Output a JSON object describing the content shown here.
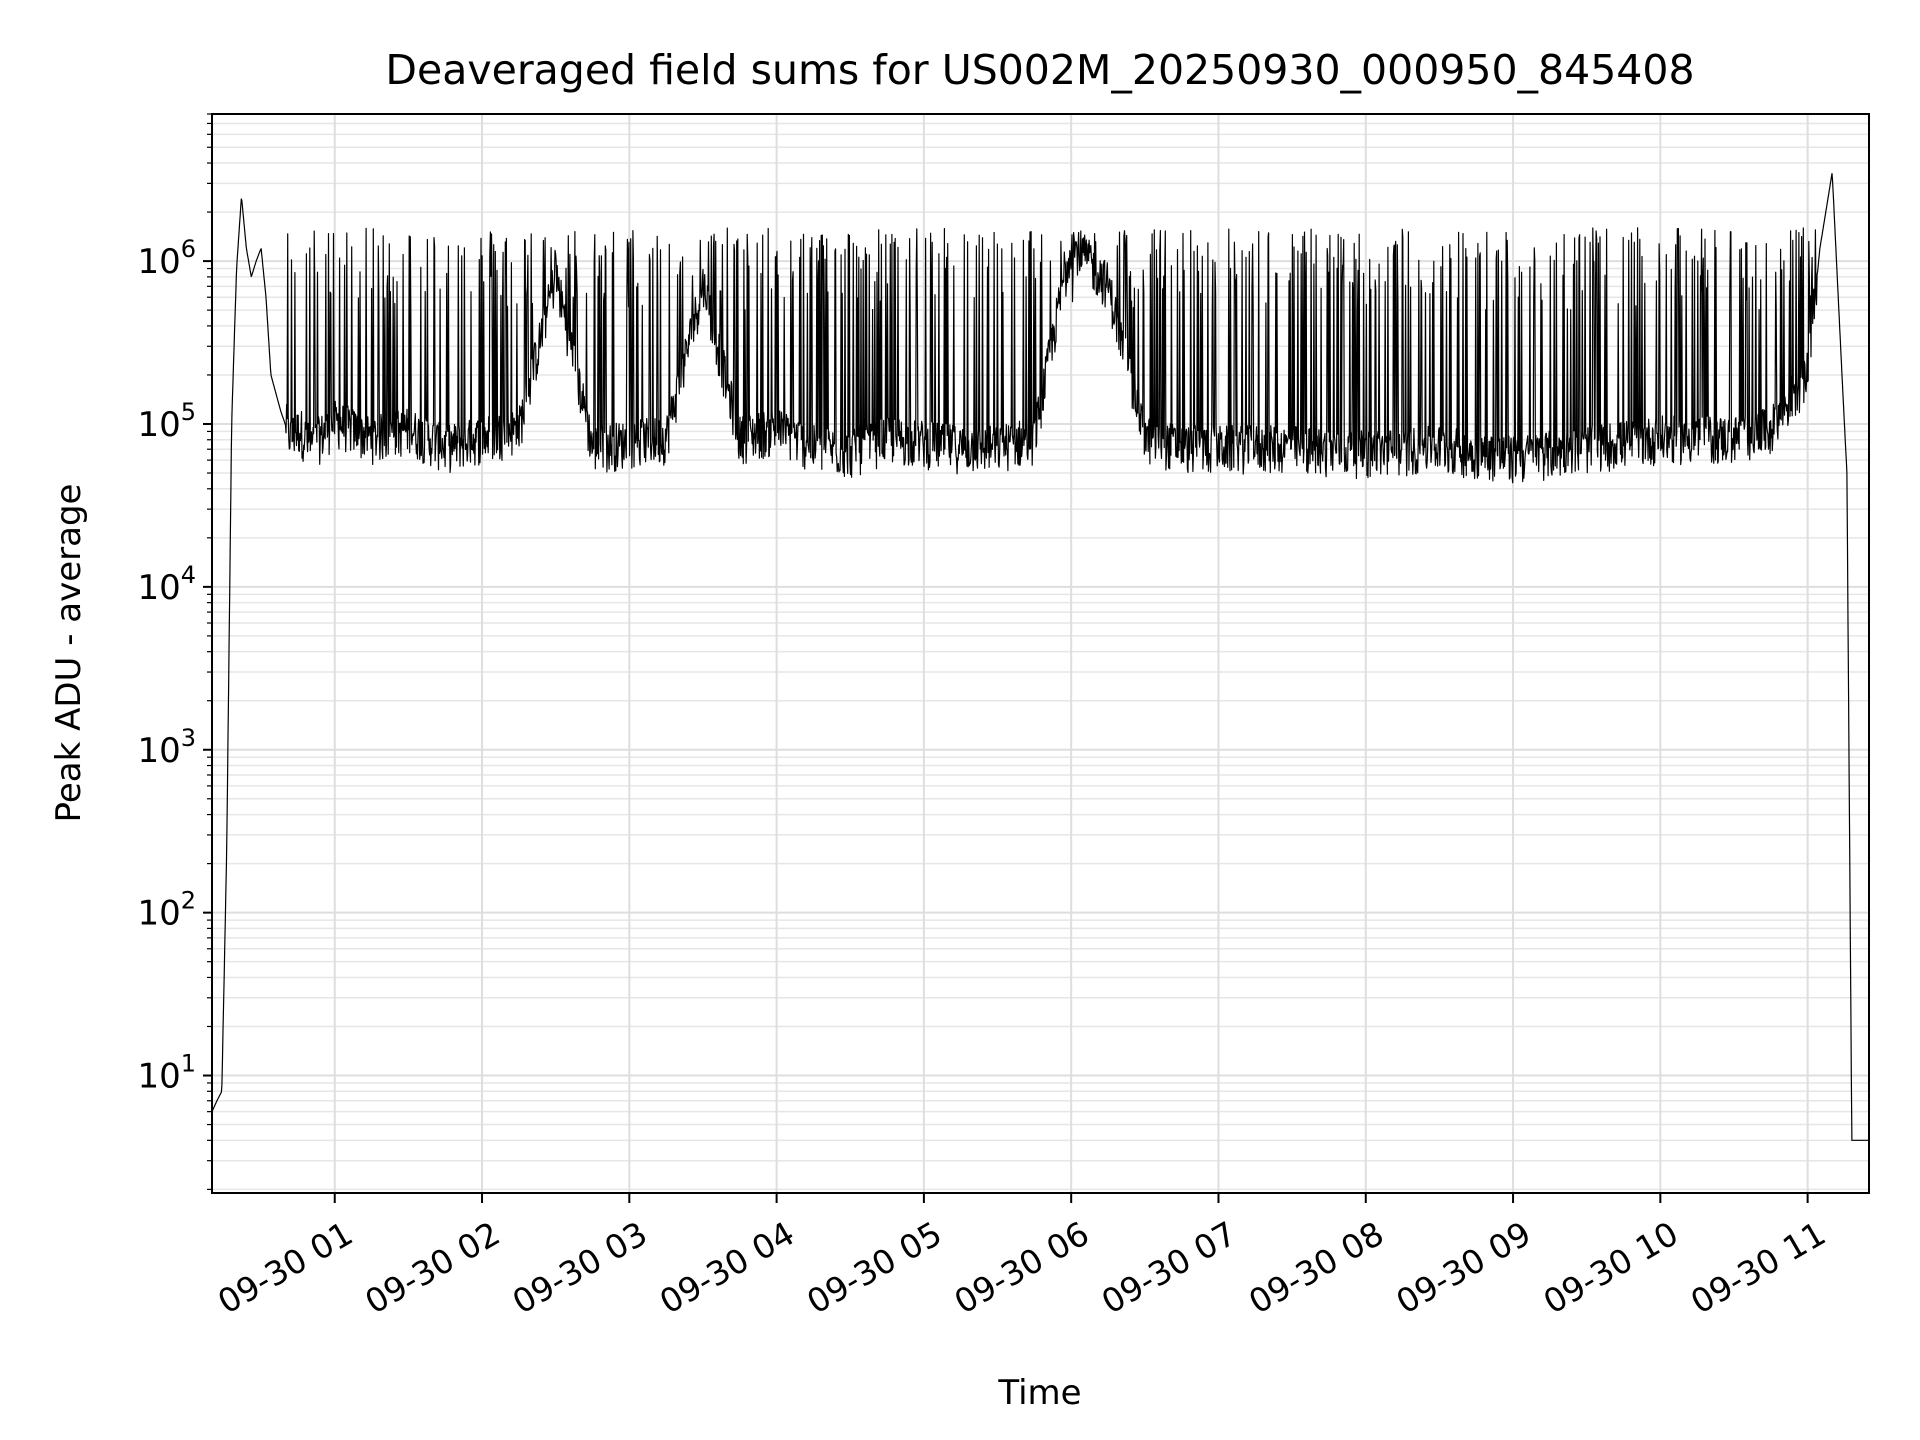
{
  "chart_data": {
    "type": "line",
    "title": "Deaveraged field sums for US002M_20250930_000950_845408",
    "xlabel": "Time",
    "ylabel": "Peak ADU - average",
    "yscale": "log",
    "ylim": [
      1.9,
      8000000
    ],
    "xlim": [
      "2025-09-30 00:10",
      "2025-09-30 11:25"
    ],
    "grid": true,
    "line_color": "#000000",
    "y_ticks": [
      {
        "value": 10,
        "base": "10",
        "exp": "1"
      },
      {
        "value": 100,
        "base": "10",
        "exp": "2"
      },
      {
        "value": 1000,
        "base": "10",
        "exp": "3"
      },
      {
        "value": 10000,
        "base": "10",
        "exp": "4"
      },
      {
        "value": 100000,
        "base": "10",
        "exp": "5"
      },
      {
        "value": 1000000,
        "base": "10",
        "exp": "6"
      }
    ],
    "x_ticks": [
      {
        "time": "2025-09-30 01:00",
        "label": "09-30 01"
      },
      {
        "time": "2025-09-30 02:00",
        "label": "09-30 02"
      },
      {
        "time": "2025-09-30 03:00",
        "label": "09-30 03"
      },
      {
        "time": "2025-09-30 04:00",
        "label": "09-30 04"
      },
      {
        "time": "2025-09-30 05:00",
        "label": "09-30 05"
      },
      {
        "time": "2025-09-30 06:00",
        "label": "09-30 06"
      },
      {
        "time": "2025-09-30 07:00",
        "label": "09-30 07"
      },
      {
        "time": "2025-09-30 08:00",
        "label": "09-30 08"
      },
      {
        "time": "2025-09-30 09:00",
        "label": "09-30 09"
      },
      {
        "time": "2025-09-30 10:00",
        "label": "09-30 10"
      },
      {
        "time": "2025-09-30 11:00",
        "label": "09-30 11"
      }
    ],
    "series": [
      {
        "x": [
          "2025-09-30 00:10",
          "2025-09-30 00:12",
          "2025-09-30 00:14",
          "2025-09-30 00:16",
          "2025-09-30 00:18",
          "2025-09-30 00:20",
          "2025-09-30 00:22",
          "2025-09-30 00:24",
          "2025-09-30 00:26",
          "2025-09-30 00:28",
          "2025-09-30 00:30",
          "2025-09-30 00:32",
          "2025-09-30 00:34",
          "2025-09-30 00:38",
          "2025-09-30 00:42",
          "2025-09-30 00:46",
          "2025-09-30 00:50",
          "2025-09-30 01:00",
          "2025-09-30 01:15",
          "2025-09-30 01:30",
          "2025-09-30 01:45",
          "2025-09-30 02:00",
          "2025-09-30 02:15",
          "2025-09-30 02:30",
          "2025-09-30 02:45",
          "2025-09-30 03:00",
          "2025-09-30 03:15",
          "2025-09-30 03:30",
          "2025-09-30 03:45",
          "2025-09-30 04:00",
          "2025-09-30 04:15",
          "2025-09-30 04:30",
          "2025-09-30 04:45",
          "2025-09-30 05:00",
          "2025-09-30 05:15",
          "2025-09-30 05:30",
          "2025-09-30 05:45",
          "2025-09-30 06:00",
          "2025-09-30 06:15",
          "2025-09-30 06:30",
          "2025-09-30 06:45",
          "2025-09-30 07:00",
          "2025-09-30 07:30",
          "2025-09-30 08:00",
          "2025-09-30 08:30",
          "2025-09-30 09:00",
          "2025-09-30 09:30",
          "2025-09-30 10:00",
          "2025-09-30 10:30",
          "2025-09-30 10:45",
          "2025-09-30 11:00",
          "2025-09-30 11:05",
          "2025-09-30 11:10",
          "2025-09-30 11:14",
          "2025-09-30 11:16",
          "2025-09-30 11:18",
          "2025-09-30 11:20",
          "2025-09-30 11:22",
          "2025-09-30 11:25"
        ],
        "y": [
          6,
          7,
          8,
          250,
          100000,
          900000,
          2500000,
          1200000,
          800000,
          1000000,
          1200000,
          600000,
          200000,
          120000,
          80000,
          90000,
          70000,
          100000,
          80000,
          90000,
          70000,
          80000,
          90000,
          800000,
          70000,
          75000,
          80000,
          700000,
          80000,
          90000,
          70000,
          65000,
          80000,
          75000,
          70000,
          70000,
          80000,
          1300000,
          700000,
          80000,
          70000,
          70000,
          70000,
          65000,
          70000,
          60000,
          70000,
          80000,
          80000,
          90000,
          200000,
          1200000,
          3500000,
          200000,
          50000,
          4,
          4,
          4,
          4
        ]
      }
    ]
  }
}
